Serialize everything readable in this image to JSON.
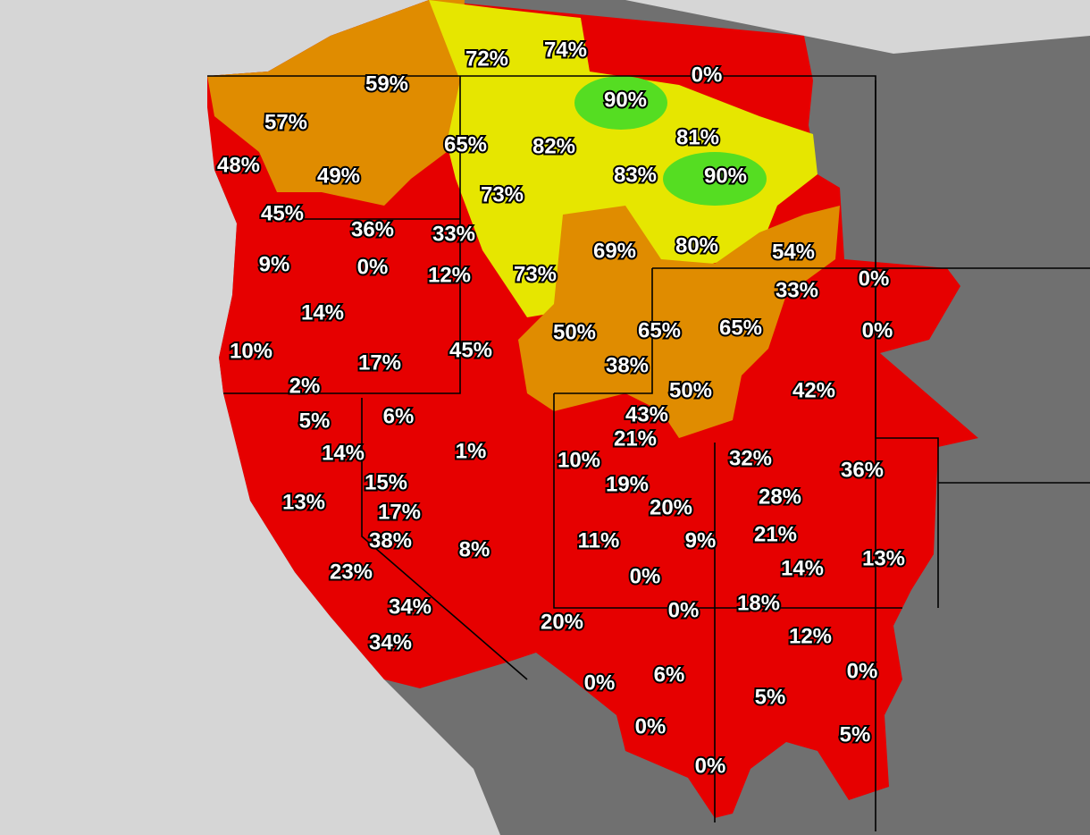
{
  "labels": [
    "72%",
    "74%",
    "0%",
    "59%",
    "90%",
    "57%",
    "65%",
    "82%",
    "81%",
    "48%",
    "49%",
    "83%",
    "90%",
    "73%",
    "45%",
    "36%",
    "33%",
    "80%",
    "54%",
    "69%",
    "9%",
    "0%",
    "12%",
    "73%",
    "0%",
    "33%",
    "14%",
    "50%",
    "65%",
    "65%",
    "0%",
    "10%",
    "17%",
    "45%",
    "38%",
    "50%",
    "42%",
    "2%",
    "43%",
    "5%",
    "6%",
    "21%",
    "14%",
    "1%",
    "10%",
    "32%",
    "36%",
    "15%",
    "19%",
    "28%",
    "13%",
    "20%",
    "17%",
    "38%",
    "11%",
    "9%",
    "21%",
    "8%",
    "14%",
    "13%",
    "23%",
    "0%",
    "18%",
    "0%",
    "34%",
    "20%",
    "12%",
    "34%",
    "0%",
    "6%",
    "0%",
    "5%",
    "0%",
    "5%",
    "0%"
  ]
}
